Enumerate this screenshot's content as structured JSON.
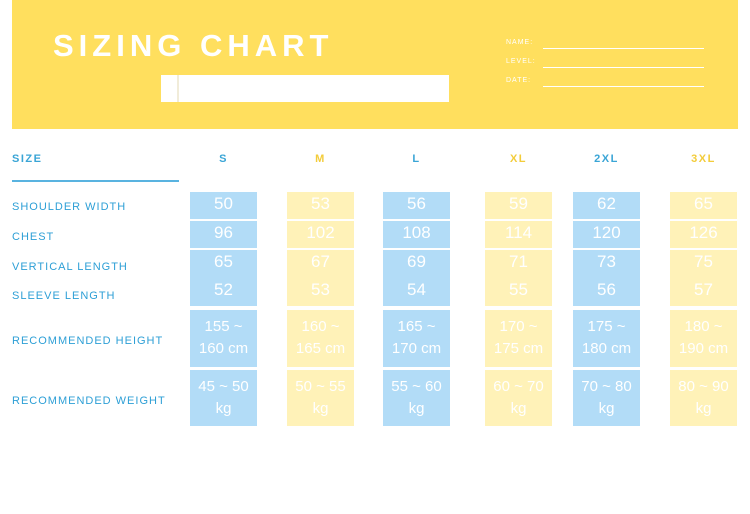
{
  "header": {
    "title": "SIZING CHART",
    "fields": [
      {
        "label": "NAME:"
      },
      {
        "label": "LEVEL:"
      },
      {
        "label": "DATE:"
      }
    ]
  },
  "table": {
    "size_header": "SIZE",
    "columns": [
      {
        "size": "S",
        "color": "#3aa5d6"
      },
      {
        "size": "M",
        "color": "#f3cc3a"
      },
      {
        "size": "L",
        "color": "#3aa5d6"
      },
      {
        "size": "XL",
        "color": "#f3cc3a"
      },
      {
        "size": "2XL",
        "color": "#3aa5d6"
      },
      {
        "size": "3XL",
        "color": "#f3cc3a"
      }
    ],
    "row_labels": [
      "SHOULDER WIDTH",
      "CHEST",
      "VERTICAL LENGTH",
      "SLEEVE LENGTH",
      "RECOMMENDED HEIGHT",
      "RECOMMENDED WEIGHT"
    ],
    "shoulder": [
      "50",
      "53",
      "56",
      "59",
      "62",
      "65"
    ],
    "chest": [
      "96",
      "102",
      "108",
      "114",
      "120",
      "126"
    ],
    "vertical": [
      "65",
      "67",
      "69",
      "71",
      "73",
      "75"
    ],
    "sleeve": [
      "52",
      "53",
      "54",
      "55",
      "56",
      "57"
    ],
    "height": [
      [
        "155 ~",
        "160 cm"
      ],
      [
        "160 ~",
        "165 cm"
      ],
      [
        "165 ~",
        "170 cm"
      ],
      [
        "170 ~",
        "175 cm"
      ],
      [
        "175 ~",
        "180 cm"
      ],
      [
        "180 ~",
        "190 cm"
      ]
    ],
    "weight": [
      [
        "45 ~ 50",
        "kg"
      ],
      [
        "50 ~ 55",
        "kg"
      ],
      [
        "55 ~ 60",
        "kg"
      ],
      [
        "60 ~ 70",
        "kg"
      ],
      [
        "70 ~ 80",
        "kg"
      ],
      [
        "80 ~ 90",
        "kg"
      ]
    ]
  },
  "colors": {
    "banner": "#ffdf5e",
    "cell_blue": "#b2dcf7",
    "cell_yellow": "#fff2b8",
    "label_blue": "#2d9fd6"
  }
}
